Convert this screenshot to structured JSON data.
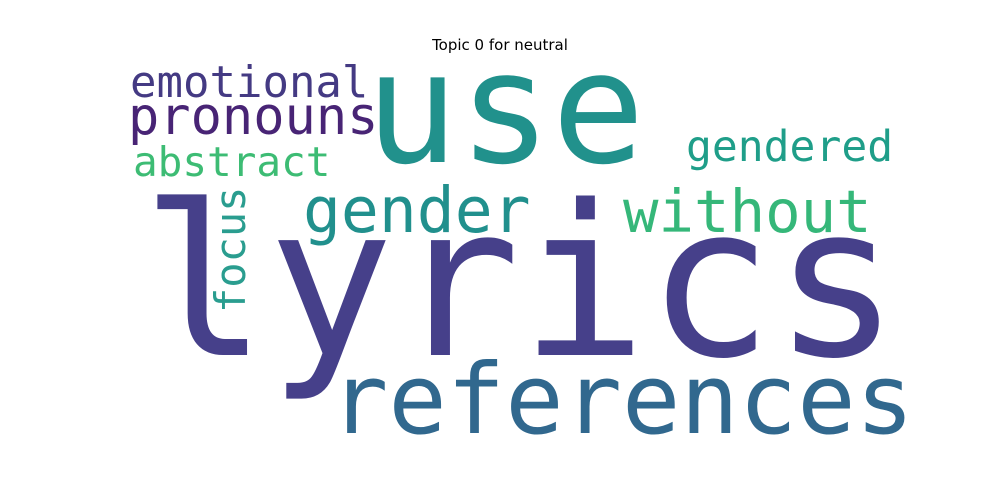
{
  "chart_data": {
    "type": "wordcloud",
    "title": "Topic 0 for neutral",
    "words": [
      {
        "text": "lyrics",
        "weight": 1.0,
        "color": "#46408a"
      },
      {
        "text": "use",
        "weight": 0.78,
        "color": "#21918c"
      },
      {
        "text": "references",
        "weight": 0.52,
        "color": "#31688e"
      },
      {
        "text": "gender",
        "weight": 0.33,
        "color": "#21908d"
      },
      {
        "text": "without",
        "weight": 0.32,
        "color": "#35b779"
      },
      {
        "text": "pronouns",
        "weight": 0.28,
        "color": "#482475"
      },
      {
        "text": "emotional",
        "weight": 0.27,
        "color": "#443a83"
      },
      {
        "text": "gendered",
        "weight": 0.25,
        "color": "#1f9e89"
      },
      {
        "text": "abstract",
        "weight": 0.25,
        "color": "#3dbc74"
      },
      {
        "text": "focus",
        "weight": 0.24,
        "color": "#2a9d8f"
      }
    ]
  }
}
